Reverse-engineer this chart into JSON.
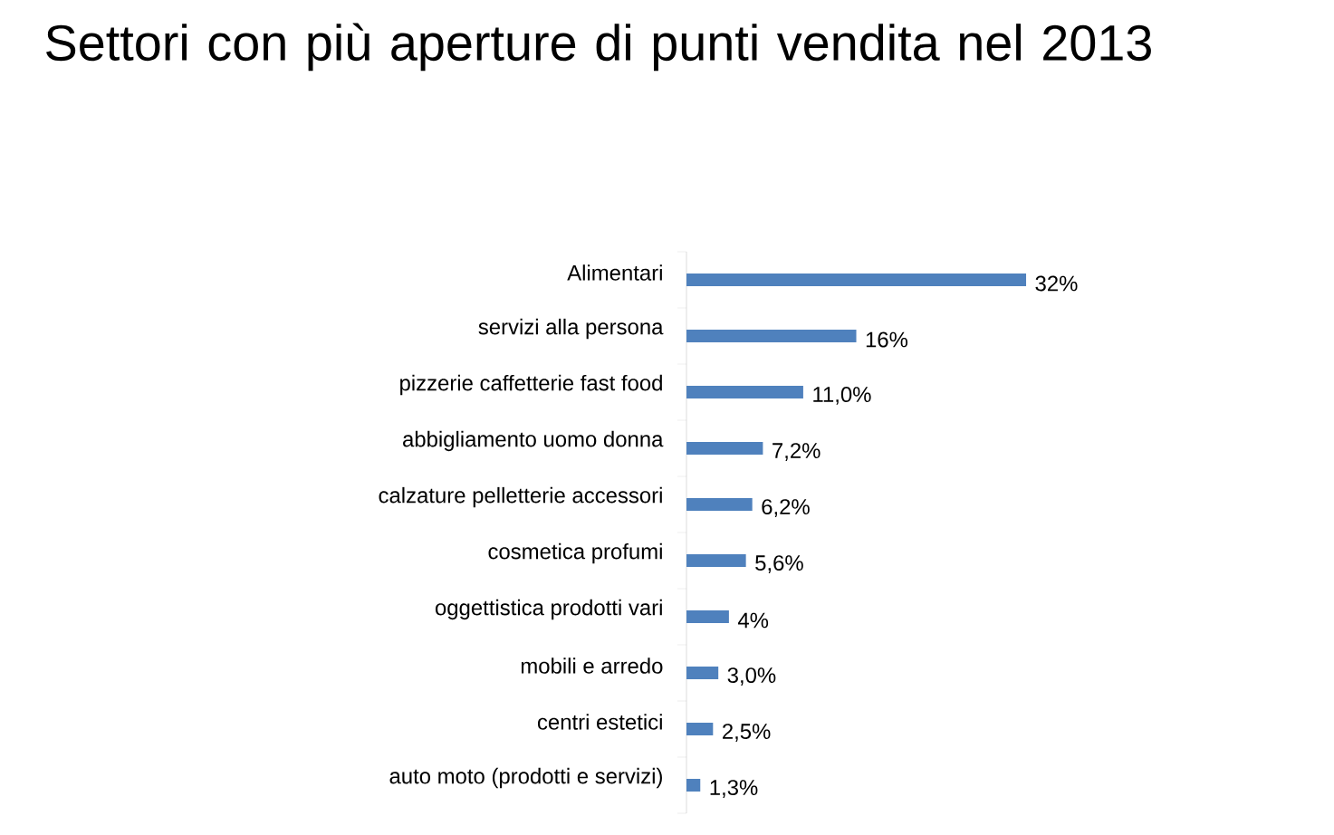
{
  "chart_data": {
    "type": "bar",
    "orientation": "horizontal",
    "title": "Settori con più aperture di punti vendita nel 2013",
    "categories": [
      "Alimentari",
      "servizi alla persona",
      "pizzerie caffetterie fast food",
      "abbigliamento uomo donna",
      "calzature pelletterie accessori",
      "cosmetica profumi",
      "oggettistica prodotti vari",
      "mobili e arredo",
      "centri estetici",
      "auto moto (prodotti e servizi)"
    ],
    "values": [
      32,
      16,
      11.0,
      7.2,
      6.2,
      5.6,
      4,
      3.0,
      2.5,
      1.3
    ],
    "value_labels": [
      "32%",
      "16%",
      "11,0%",
      "7,2%",
      "6,2%",
      "5,6%",
      "4%",
      "3,0%",
      "2,5%",
      "1,3%"
    ],
    "color": "#4f81bd"
  }
}
